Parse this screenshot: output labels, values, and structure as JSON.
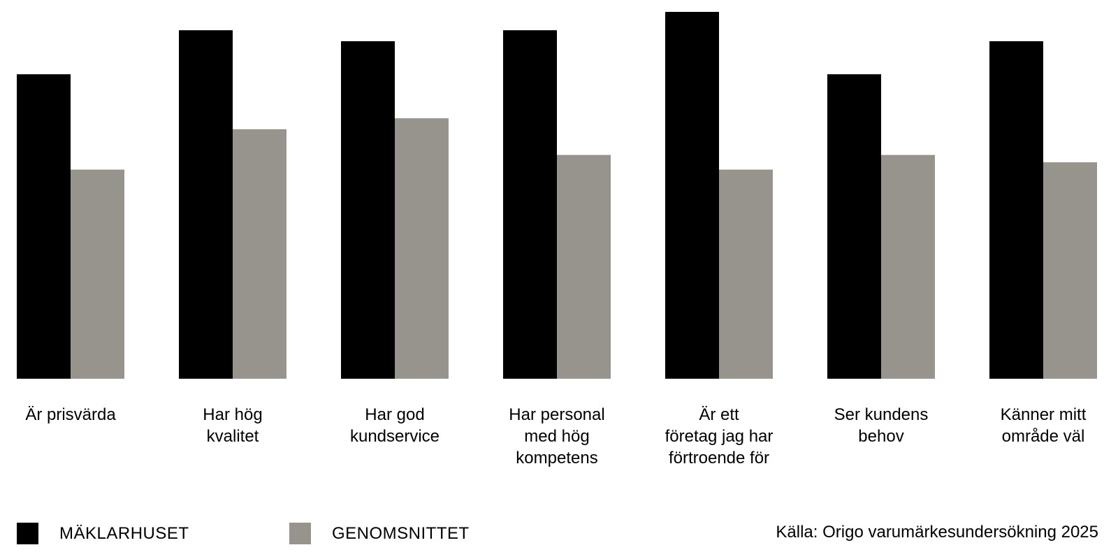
{
  "chart_data": {
    "type": "bar",
    "title": "",
    "xlabel": "",
    "ylabel": "",
    "ylim": [
      0,
      100
    ],
    "grid": false,
    "legend": "bottom-left",
    "categories": [
      [
        "Är prisvärda"
      ],
      [
        "Har hög",
        "kvalitet"
      ],
      [
        "Har god",
        "kundservice"
      ],
      [
        "Har personal",
        "med hög",
        "kompetens"
      ],
      [
        "Är ett",
        "företag jag har",
        "förtroende för"
      ],
      [
        "Ser kundens",
        "behov"
      ],
      [
        "Känner mitt",
        "område väl"
      ]
    ],
    "series": [
      {
        "name": "MÄKLARHUSET",
        "color": "#000000",
        "values": [
          83,
          95,
          92,
          95,
          100,
          83,
          92
        ]
      },
      {
        "name": "GENOMSNITTET",
        "color": "#96948c",
        "values": [
          57,
          68,
          71,
          61,
          57,
          61,
          59
        ]
      }
    ]
  },
  "source": "Källa: Origo varumärkesundersökning 2025"
}
